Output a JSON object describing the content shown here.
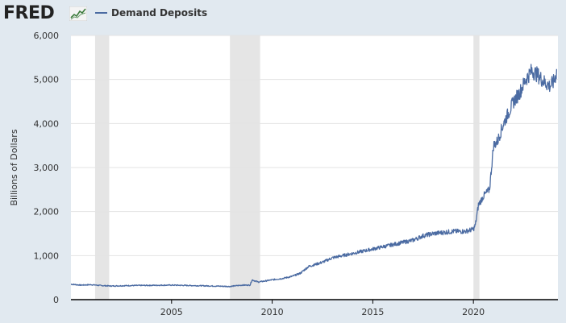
{
  "header": {
    "logo_text": "FRED",
    "logo_icon": "fred-graph-icon",
    "legend_label": "Demand Deposits"
  },
  "colors": {
    "series": "#4b6ba2",
    "recession": "#e5e5e5",
    "grid": "#e3e3e3",
    "background": "#e1e9f0",
    "plot_background": "#ffffff"
  },
  "chart_data": {
    "type": "line",
    "title": "",
    "xlabel": "",
    "ylabel": "Billions of Dollars",
    "xlim": [
      2000.0,
      2024.2
    ],
    "ylim": [
      0,
      6000
    ],
    "x_ticks": [
      2005,
      2010,
      2015,
      2020
    ],
    "x_tick_labels": [
      "2005",
      "2010",
      "2015",
      "2020"
    ],
    "y_ticks": [
      0,
      1000,
      2000,
      3000,
      4000,
      5000,
      6000
    ],
    "y_tick_labels": [
      "0",
      "1,000",
      "2,000",
      "3,000",
      "4,000",
      "5,000",
      "6,000"
    ],
    "grid": true,
    "legend": "top-left",
    "recessions": [
      {
        "start": 2001.2,
        "end": 2001.9
      },
      {
        "start": 2007.9,
        "end": 2009.4
      },
      {
        "start": 2020.0,
        "end": 2020.3
      }
    ],
    "series": [
      {
        "name": "Demand Deposits",
        "x": [
          2000.0,
          2000.5,
          2001.0,
          2001.5,
          2002.0,
          2003.0,
          2004.0,
          2005.0,
          2006.0,
          2007.0,
          2007.9,
          2008.5,
          2008.9,
          2009.0,
          2009.3,
          2009.6,
          2010.0,
          2010.5,
          2011.0,
          2011.4,
          2011.8,
          2012.5,
          2013.0,
          2013.5,
          2014.0,
          2015.0,
          2016.0,
          2017.0,
          2017.5,
          2018.0,
          2019.0,
          2019.6,
          2020.0,
          2020.1,
          2020.25,
          2020.5,
          2020.8,
          2021.0,
          2021.2,
          2021.5,
          2022.0,
          2022.3,
          2022.6,
          2022.9,
          2023.2,
          2023.5,
          2023.8,
          2024.0,
          2024.15
        ],
        "y": [
          350,
          330,
          340,
          320,
          310,
          320,
          325,
          330,
          320,
          310,
          300,
          330,
          330,
          450,
          400,
          420,
          450,
          480,
          530,
          600,
          750,
          850,
          950,
          1000,
          1050,
          1150,
          1250,
          1350,
          1450,
          1500,
          1550,
          1550,
          1600,
          1700,
          2150,
          2350,
          2500,
          3500,
          3600,
          4000,
          4500,
          4700,
          5000,
          5200,
          5100,
          4950,
          4850,
          4950,
          5200
        ]
      }
    ]
  }
}
